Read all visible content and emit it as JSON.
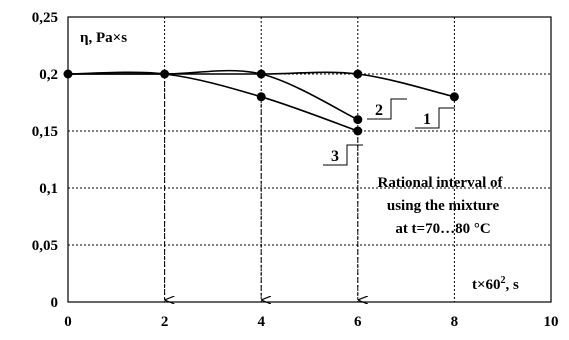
{
  "chart_data": {
    "type": "line",
    "xlabel": "t×60², s",
    "ylabel": "η, Pa×s",
    "xlim": [
      0,
      10
    ],
    "ylim": [
      0,
      0.25
    ],
    "x_ticks": [
      "0",
      "2",
      "4",
      "6",
      "8",
      "10"
    ],
    "y_ticks": [
      "0",
      "0,05",
      "0,1",
      "0,15",
      "0,2",
      "0,25"
    ],
    "grid": "dashed",
    "series": [
      {
        "name": "1",
        "x": [
          0,
          2,
          4,
          6,
          8
        ],
        "y": [
          0.2,
          0.2,
          0.2,
          0.2,
          0.18
        ]
      },
      {
        "name": "2",
        "x": [
          0,
          2,
          4,
          6
        ],
        "y": [
          0.2,
          0.2,
          0.2,
          0.16
        ]
      },
      {
        "name": "3",
        "x": [
          0,
          2,
          4,
          6
        ],
        "y": [
          0.2,
          0.2,
          0.18,
          0.15
        ]
      }
    ],
    "markers": [
      {
        "x": 0,
        "y": 0.2
      },
      {
        "x": 2,
        "y": 0.2
      },
      {
        "x": 4,
        "y": 0.2
      },
      {
        "x": 6,
        "y": 0.2
      },
      {
        "x": 4,
        "y": 0.18
      },
      {
        "x": 6,
        "y": 0.16
      },
      {
        "x": 6,
        "y": 0.15
      },
      {
        "x": 8,
        "y": 0.18
      }
    ],
    "drop_lines_x": [
      2,
      4,
      6
    ],
    "annotation_lines": [
      "Rational interval of",
      "using the mixture",
      "at t=70…80 °C"
    ]
  }
}
